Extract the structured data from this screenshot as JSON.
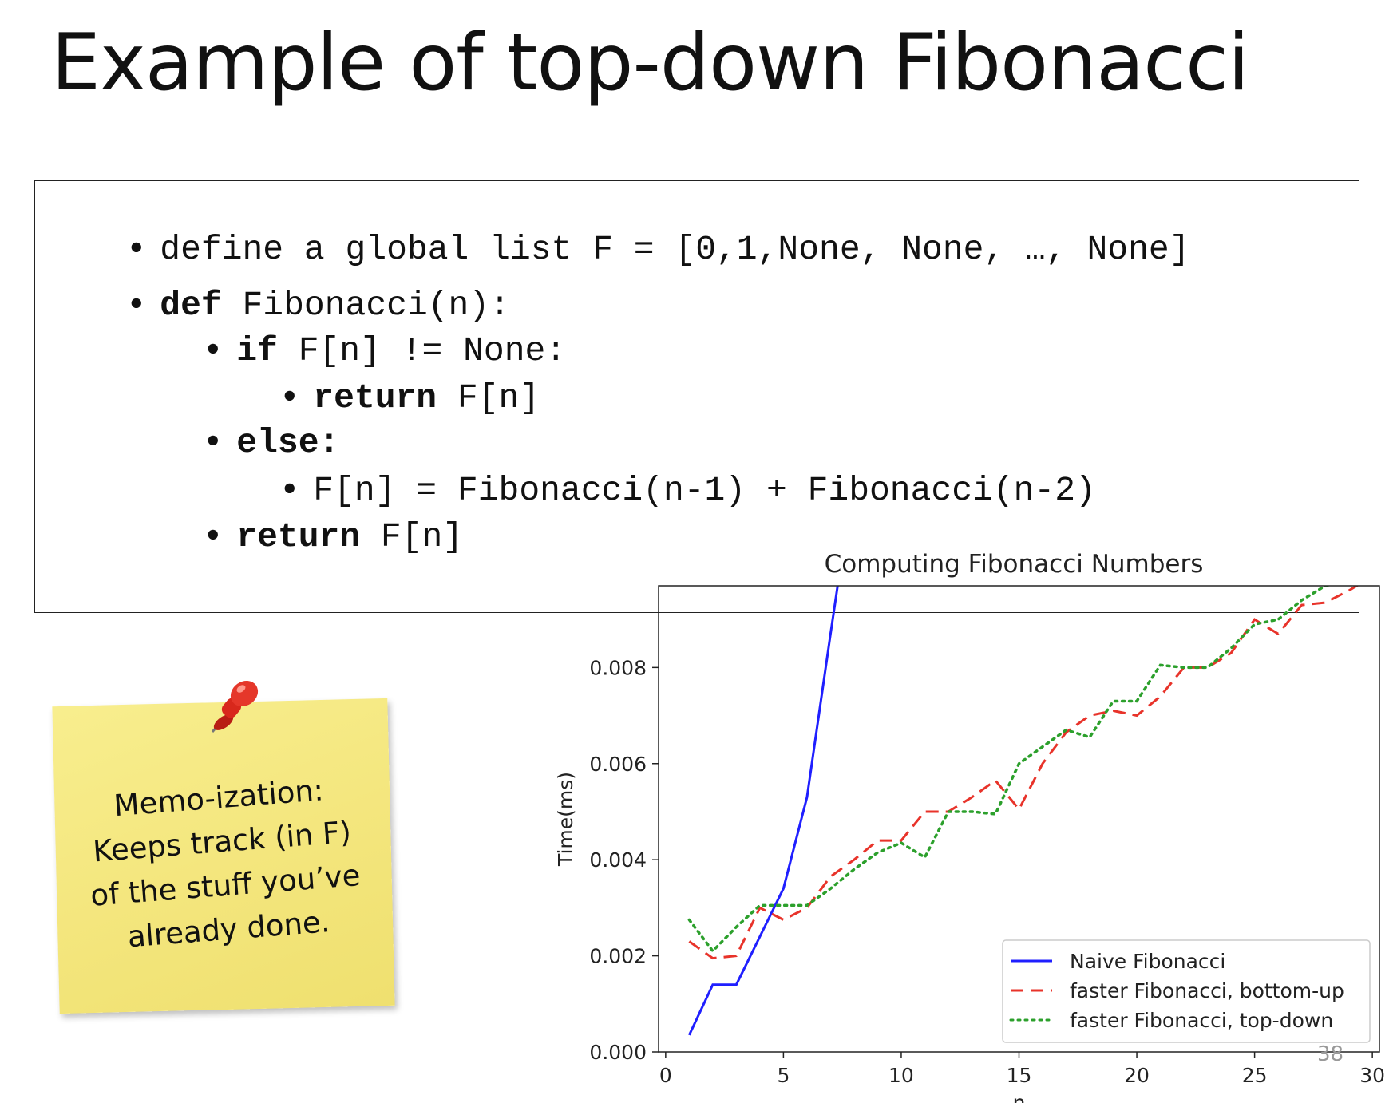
{
  "slide": {
    "title": "Example of top-down Fibonacci",
    "page_number": "38"
  },
  "code": {
    "lines": [
      {
        "bullet": "•",
        "keyword": "",
        "text": "define a global list F = [0,1,None, None, …, None]"
      },
      {
        "bullet": "•",
        "keyword": "def",
        "text": " Fibonacci(n):"
      },
      {
        "bullet": "•",
        "keyword": "if",
        "text": " F[n] != None:"
      },
      {
        "bullet": "•",
        "keyword": "return",
        "text": " F[n]"
      },
      {
        "bullet": "•",
        "keyword": "else:",
        "text": ""
      },
      {
        "bullet": "•",
        "keyword": "",
        "text": "F[n] = Fibonacci(n-1) + Fibonacci(n-2)"
      },
      {
        "bullet": "•",
        "keyword": "return",
        "text": " F[n]"
      }
    ]
  },
  "sticky_note": {
    "lines": [
      "Memo-ization:",
      "Keeps track (in F)",
      "of the stuff you’ve",
      "already done."
    ],
    "color": "#f5e87f",
    "pin_icon": "red-pushpin-icon"
  },
  "chart_data": {
    "type": "line",
    "title": "Computing Fibonacci Numbers",
    "xlabel": "n",
    "ylabel": "Time(ms)",
    "xlim": [
      -0.3,
      30.3
    ],
    "ylim": [
      0,
      0.0097
    ],
    "xticks": [
      0,
      5,
      10,
      15,
      20,
      25,
      30
    ],
    "yticks": [
      0.0,
      0.002,
      0.004,
      0.006,
      0.008
    ],
    "ytick_labels": [
      "0.000",
      "0.002",
      "0.004",
      "0.006",
      "0.008"
    ],
    "legend_position": "lower-right",
    "series": [
      {
        "name": "Naive Fibonacci",
        "color": "#1f1fff",
        "style": "solid",
        "x": [
          1,
          2,
          3,
          4,
          5,
          6,
          7,
          7.3
        ],
        "y": [
          0.00035,
          0.0014,
          0.0014,
          0.0024,
          0.0034,
          0.0053,
          0.0087,
          0.0097
        ]
      },
      {
        "name": "faster Fibonacci, bottom-up",
        "color": "#e8332a",
        "style": "dashed",
        "x": [
          1,
          2,
          3,
          4,
          5,
          6,
          7,
          8,
          9,
          10,
          11,
          12,
          13,
          14,
          15,
          16,
          17,
          18,
          19,
          20,
          21,
          22,
          23,
          24,
          25,
          26,
          27,
          28,
          29,
          30
        ],
        "y": [
          0.0023,
          0.00195,
          0.002,
          0.003,
          0.00275,
          0.003,
          0.00365,
          0.004,
          0.0044,
          0.0044,
          0.005,
          0.005,
          0.0053,
          0.00565,
          0.00505,
          0.006,
          0.00665,
          0.007,
          0.0071,
          0.007,
          0.0074,
          0.008,
          0.008,
          0.0083,
          0.009,
          0.0087,
          0.0093,
          0.00935,
          0.0096,
          0.0099
        ]
      },
      {
        "name": "faster Fibonacci, top-down",
        "color": "#2ca02c",
        "style": "dotted",
        "x": [
          1,
          2,
          3,
          4,
          5,
          6,
          7,
          8,
          9,
          10,
          11,
          12,
          13,
          14,
          15,
          16,
          17,
          18,
          19,
          20,
          21,
          22,
          23,
          24,
          25,
          26,
          27,
          28,
          29,
          30
        ],
        "y": [
          0.00275,
          0.0021,
          0.0026,
          0.00305,
          0.00305,
          0.00305,
          0.0034,
          0.0038,
          0.00415,
          0.00435,
          0.00405,
          0.005,
          0.005,
          0.00495,
          0.006,
          0.00635,
          0.0067,
          0.00655,
          0.0073,
          0.0073,
          0.00805,
          0.008,
          0.008,
          0.0084,
          0.0089,
          0.009,
          0.0094,
          0.0097,
          0.0098,
          0.01
        ]
      }
    ]
  }
}
